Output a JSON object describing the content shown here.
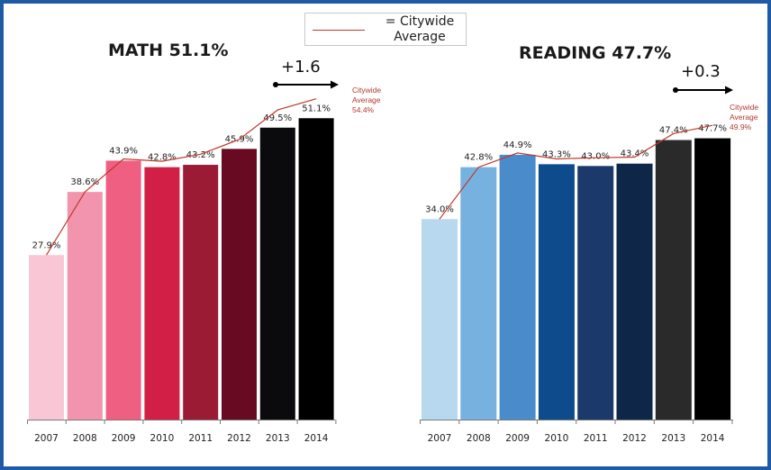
{
  "legend": {
    "label": "= Citywide\nAverage",
    "line_color": "#c0392b"
  },
  "chart_data": [
    {
      "type": "bar",
      "title": "MATH 51.1%",
      "change_label": "+1.6",
      "categories": [
        "2007",
        "2008",
        "2009",
        "2010",
        "2011",
        "2012",
        "2013",
        "2014"
      ],
      "values": [
        27.9,
        38.6,
        43.9,
        42.8,
        43.2,
        45.9,
        49.5,
        51.1
      ],
      "value_labels": [
        "27.9%",
        "38.6%",
        "43.9%",
        "42.8%",
        "43.2%",
        "45.9%",
        "49.5%",
        "51.1%"
      ],
      "bar_colors": [
        "#f9c6d6",
        "#f294ad",
        "#ee5f82",
        "#d21f45",
        "#9b1b35",
        "#680a22",
        "#0b0b0d",
        "#000000"
      ],
      "line": {
        "values": [
          27.9,
          38.6,
          44.2,
          43.8,
          45.0,
          47.5,
          52.5,
          54.4
        ],
        "color": "#c0392b"
      },
      "line_label": [
        "Citywide",
        "Average",
        "54.4%"
      ],
      "ylim": [
        0,
        60
      ]
    },
    {
      "type": "bar",
      "title": "READING 47.7%",
      "change_label": "+0.3",
      "categories": [
        "2007",
        "2008",
        "2009",
        "2010",
        "2011",
        "2012",
        "2013",
        "2014"
      ],
      "values": [
        34.0,
        42.8,
        44.9,
        43.3,
        43.0,
        43.4,
        47.4,
        47.7
      ],
      "value_labels": [
        "34.0%",
        "42.8%",
        "44.9%",
        "43.3%",
        "43.0%",
        "43.4%",
        "47.4%",
        "47.7%"
      ],
      "bar_colors": [
        "#b8d8f0",
        "#77b1e0",
        "#4a8bcb",
        "#0d4b8c",
        "#1b3a6b",
        "#0e2647",
        "#2a2a2a",
        "#000000"
      ],
      "line": {
        "values": [
          34.0,
          42.8,
          45.2,
          44.2,
          44.4,
          44.5,
          48.5,
          49.9
        ],
        "color": "#c0392b"
      },
      "line_label": [
        "Citywide",
        "Average",
        "49.9%"
      ],
      "ylim": [
        0,
        60
      ]
    }
  ]
}
